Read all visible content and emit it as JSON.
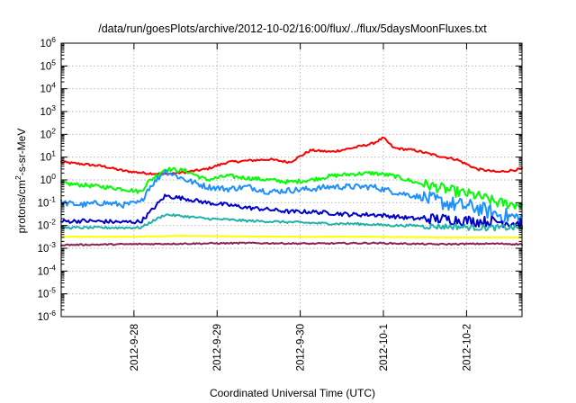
{
  "chart_data": {
    "type": "line",
    "title": "/data/run/goesPlots/archive/2012-10-02/16:00/flux/../flux/5daysMoonFluxes.txt",
    "xlabel": "Coordinated Universal Time (UTC)",
    "ylabel_parts": [
      "protons/cm",
      "2",
      "-s-sr-MeV"
    ],
    "y_scale": "log",
    "ylim": [
      1e-06,
      1000000.0
    ],
    "y_ticks": [
      {
        "base": "10",
        "exp": "-6",
        "value": 1e-06
      },
      {
        "base": "10",
        "exp": "-5",
        "value": 1e-05
      },
      {
        "base": "10",
        "exp": "-4",
        "value": 0.0001
      },
      {
        "base": "10",
        "exp": "-3",
        "value": 0.001
      },
      {
        "base": "10",
        "exp": "-2",
        "value": 0.01
      },
      {
        "base": "10",
        "exp": "-1",
        "value": 0.1
      },
      {
        "base": "10",
        "exp": "0",
        "value": 1
      },
      {
        "base": "10",
        "exp": "1",
        "value": 10
      },
      {
        "base": "10",
        "exp": "2",
        "value": 100
      },
      {
        "base": "10",
        "exp": "3",
        "value": 1000
      },
      {
        "base": "10",
        "exp": "4",
        "value": 10000
      },
      {
        "base": "10",
        "exp": "5",
        "value": 100000
      },
      {
        "base": "10",
        "exp": "6",
        "value": 1000000
      }
    ],
    "xlim": [
      "2012-09-27T03:00",
      "2012-10-02T16:00"
    ],
    "x_ticks": [
      {
        "label": "2012-9-28",
        "value": "2012-09-28T00:00"
      },
      {
        "label": "2012-9-29",
        "value": "2012-09-29T00:00"
      },
      {
        "label": "2012-9-30",
        "value": "2012-09-30T00:00"
      },
      {
        "label": "2012-10-1",
        "value": "2012-10-01T00:00"
      },
      {
        "label": "2012-10-2",
        "value": "2012-10-02T00:00"
      }
    ],
    "grid": true,
    "series": [
      {
        "color": "#ff0000",
        "x": [
          "2012-09-27T03:00",
          "2012-09-27T09:00",
          "2012-09-27T15:00",
          "2012-09-27T21:00",
          "2012-09-28T03:00",
          "2012-09-28T09:00",
          "2012-09-28T15:00",
          "2012-09-28T21:00",
          "2012-09-29T03:00",
          "2012-09-29T09:00",
          "2012-09-29T15:00",
          "2012-09-29T21:00",
          "2012-09-30T03:00",
          "2012-09-30T09:00",
          "2012-09-30T15:00",
          "2012-09-30T21:00",
          "2012-10-01T00:00",
          "2012-10-01T03:00",
          "2012-10-01T09:00",
          "2012-10-01T15:00",
          "2012-10-01T21:00",
          "2012-10-02T03:00",
          "2012-10-02T09:00",
          "2012-10-02T16:00"
        ],
        "values": [
          6,
          5,
          4,
          2.5,
          2,
          1.8,
          2.2,
          3,
          6,
          7,
          8,
          6,
          20,
          17,
          25,
          40,
          70,
          25,
          20,
          12,
          8,
          3,
          2.2,
          3
        ]
      },
      {
        "color": "#00ff00",
        "x": [
          "2012-09-27T03:00",
          "2012-09-27T09:00",
          "2012-09-27T15:00",
          "2012-09-27T21:00",
          "2012-09-28T02:00",
          "2012-09-28T04:00",
          "2012-09-28T09:00",
          "2012-09-28T15:00",
          "2012-09-28T21:00",
          "2012-09-29T03:00",
          "2012-09-29T09:00",
          "2012-09-29T15:00",
          "2012-09-29T21:00",
          "2012-09-30T03:00",
          "2012-09-30T09:00",
          "2012-09-30T15:00",
          "2012-09-30T21:00",
          "2012-10-01T03:00",
          "2012-10-01T09:00",
          "2012-10-01T15:00",
          "2012-10-01T21:00",
          "2012-10-02T03:00",
          "2012-10-02T09:00",
          "2012-10-02T16:00"
        ],
        "values": [
          0.7,
          0.6,
          0.5,
          0.4,
          0.3,
          0.8,
          3,
          2.5,
          1,
          1.5,
          1.2,
          1,
          0.8,
          1,
          1.5,
          1.8,
          2,
          1.5,
          0.8,
          0.5,
          0.3,
          0.2,
          0.1,
          0.08
        ]
      },
      {
        "color": "#1e90ff",
        "x": [
          "2012-09-27T03:00",
          "2012-09-27T09:00",
          "2012-09-27T15:00",
          "2012-09-27T21:00",
          "2012-09-28T02:00",
          "2012-09-28T04:00",
          "2012-09-28T09:00",
          "2012-09-28T15:00",
          "2012-09-28T21:00",
          "2012-09-29T03:00",
          "2012-09-29T09:00",
          "2012-09-29T15:00",
          "2012-09-29T21:00",
          "2012-09-30T03:00",
          "2012-09-30T09:00",
          "2012-09-30T15:00",
          "2012-09-30T21:00",
          "2012-10-01T03:00",
          "2012-10-01T09:00",
          "2012-10-01T15:00",
          "2012-10-01T21:00",
          "2012-10-02T03:00",
          "2012-10-02T09:00",
          "2012-10-02T16:00"
        ],
        "values": [
          0.1,
          0.08,
          0.1,
          0.08,
          0.1,
          0.4,
          2.5,
          1,
          0.5,
          0.4,
          0.5,
          0.3,
          0.35,
          0.4,
          0.5,
          0.5,
          0.5,
          0.3,
          0.2,
          0.12,
          0.08,
          0.06,
          0.03,
          0.02
        ]
      },
      {
        "color": "#0000cd",
        "x": [
          "2012-09-27T03:00",
          "2012-09-27T09:00",
          "2012-09-27T15:00",
          "2012-09-27T21:00",
          "2012-09-28T02:00",
          "2012-09-28T04:00",
          "2012-09-28T09:00",
          "2012-09-28T15:00",
          "2012-09-28T21:00",
          "2012-09-29T03:00",
          "2012-09-29T09:00",
          "2012-09-29T15:00",
          "2012-09-29T21:00",
          "2012-09-30T03:00",
          "2012-09-30T09:00",
          "2012-09-30T15:00",
          "2012-09-30T21:00",
          "2012-10-01T03:00",
          "2012-10-01T09:00",
          "2012-10-01T15:00",
          "2012-10-01T21:00",
          "2012-10-02T03:00",
          "2012-10-02T09:00",
          "2012-10-02T16:00"
        ],
        "values": [
          0.015,
          0.016,
          0.015,
          0.014,
          0.015,
          0.03,
          0.2,
          0.15,
          0.1,
          0.08,
          0.06,
          0.05,
          0.04,
          0.04,
          0.035,
          0.03,
          0.03,
          0.025,
          0.02,
          0.02,
          0.018,
          0.015,
          0.015,
          0.012
        ]
      },
      {
        "color": "#20b2aa",
        "x": [
          "2012-09-27T03:00",
          "2012-09-27T09:00",
          "2012-09-27T15:00",
          "2012-09-27T21:00",
          "2012-09-28T02:00",
          "2012-09-28T04:00",
          "2012-09-28T09:00",
          "2012-09-28T15:00",
          "2012-09-28T21:00",
          "2012-09-29T03:00",
          "2012-09-29T09:00",
          "2012-09-29T15:00",
          "2012-09-29T21:00",
          "2012-09-30T03:00",
          "2012-09-30T09:00",
          "2012-09-30T15:00",
          "2012-09-30T21:00",
          "2012-10-01T03:00",
          "2012-10-01T09:00",
          "2012-10-01T15:00",
          "2012-10-01T21:00",
          "2012-10-02T03:00",
          "2012-10-02T09:00",
          "2012-10-02T16:00"
        ],
        "values": [
          0.008,
          0.008,
          0.008,
          0.008,
          0.008,
          0.012,
          0.03,
          0.025,
          0.02,
          0.018,
          0.016,
          0.015,
          0.014,
          0.013,
          0.012,
          0.012,
          0.011,
          0.01,
          0.01,
          0.009,
          0.009,
          0.008,
          0.008,
          0.008
        ]
      },
      {
        "color": "#ffff00",
        "x": [
          "2012-09-27T03:00",
          "2012-09-27T21:00",
          "2012-09-28T15:00",
          "2012-09-29T09:00",
          "2012-09-30T03:00",
          "2012-09-30T21:00",
          "2012-10-01T15:00",
          "2012-10-02T09:00",
          "2012-10-02T16:00"
        ],
        "values": [
          0.0032,
          0.0032,
          0.0035,
          0.0033,
          0.0032,
          0.0032,
          0.003,
          0.003,
          0.003
        ]
      },
      {
        "color": "#8b2252",
        "x": [
          "2012-09-27T03:00",
          "2012-09-27T21:00",
          "2012-09-28T15:00",
          "2012-09-29T09:00",
          "2012-09-30T03:00",
          "2012-09-30T21:00",
          "2012-10-01T15:00",
          "2012-10-02T09:00",
          "2012-10-02T16:00"
        ],
        "values": [
          0.0014,
          0.0015,
          0.0016,
          0.0017,
          0.0016,
          0.0017,
          0.0015,
          0.0016,
          0.0015
        ]
      }
    ]
  }
}
